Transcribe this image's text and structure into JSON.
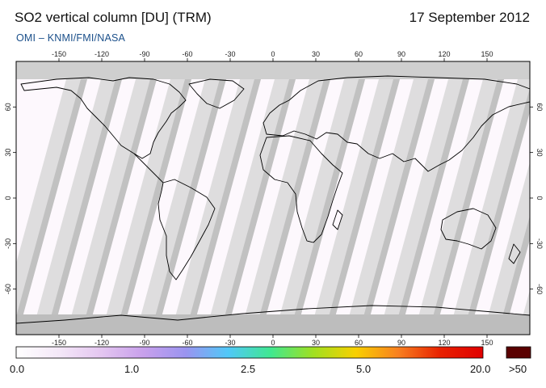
{
  "header": {
    "title": "SO2 vertical column [DU] (TRM)",
    "date": "17 September 2012",
    "subtitle": "OMI  –  KNMI/FMI/NASA"
  },
  "map": {
    "projection": "equirectangular",
    "lon_range": [
      -180,
      180
    ],
    "lat_range": [
      -90,
      90
    ],
    "lon_ticks": [
      "-150",
      "-120",
      "-90",
      "-60",
      "-30",
      "0",
      "30",
      "60",
      "90",
      "120",
      "150"
    ],
    "lat_ticks": [
      "60",
      "30",
      "0",
      "-30",
      "-60"
    ],
    "colors": {
      "background": "#fdf8fd",
      "orbit_gap_light": "#d8d8d8",
      "orbit_gap_dark": "#aaaaaa",
      "polar_no_data": "#cfcfcf",
      "coastline": "#000000"
    }
  },
  "colorbar": {
    "labels": [
      "0.0",
      "1.0",
      "2.5",
      "5.0",
      "20.0",
      ">50"
    ],
    "gradient_colors": [
      "#ffffff",
      "#f4e8f8",
      "#e4c6f0",
      "#c8a0ec",
      "#9a94f0",
      "#50c8f8",
      "#40e890",
      "#a0e020",
      "#f8d000",
      "#f88020",
      "#e82000",
      "#e00000"
    ],
    "overflow_color": "#5a0000"
  }
}
